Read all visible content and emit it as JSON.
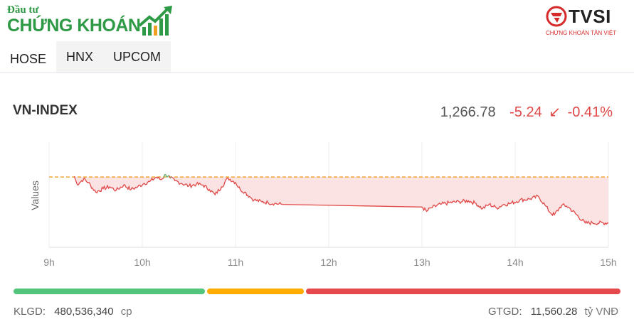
{
  "brand": {
    "logo_top": "Đầu tư",
    "logo_main": "CHỨNG KHOÁN",
    "partner_name": "TVSI",
    "partner_sub": "CHỨNG KHOÁN TÂN VIỆT"
  },
  "tabs": [
    {
      "label": "HOSE",
      "active": true
    },
    {
      "label": "HNX",
      "active": false
    },
    {
      "label": "UPCOM",
      "active": false
    }
  ],
  "index": {
    "name": "VN-INDEX",
    "value": "1,266.78",
    "change": "-5.24",
    "change_pct": "-0.41%",
    "direction": "down"
  },
  "breadth": {
    "advancing_share": 0.315,
    "unchanged_share": 0.16,
    "declining_share": 0.525
  },
  "summary": {
    "volume_label": "KLGD:",
    "volume_value": "480,536,340",
    "volume_unit": "cp",
    "value_label": "GTGD:",
    "value_value": "11,560.28",
    "value_unit": "tỷ VNĐ"
  },
  "colors": {
    "down": "#e04848",
    "up": "#52c47c",
    "reference": "#f0a020",
    "fill": "#fbe3e3"
  },
  "chart_data": {
    "type": "line",
    "ylabel": "Values",
    "x_ticks": [
      "9h",
      "10h",
      "11h",
      "12h",
      "13h",
      "14h",
      "15h"
    ],
    "x_range": [
      9,
      15
    ],
    "reference": 1272.02,
    "ylim": [
      1264,
      1276
    ],
    "series": [
      {
        "x": [
          9.27,
          9.3,
          9.33,
          9.37,
          9.42,
          9.5,
          9.58,
          9.65,
          9.72,
          9.8,
          9.88,
          9.95,
          10.02,
          10.08,
          10.15,
          10.2,
          10.25,
          10.3,
          10.35,
          10.42,
          10.5,
          10.58,
          10.65,
          10.72,
          10.78,
          10.85,
          10.92,
          11.0,
          11.05,
          11.1,
          11.15,
          11.2,
          11.28,
          11.35,
          11.42,
          11.5,
          13.0,
          13.05,
          13.1,
          13.2,
          13.3,
          13.4,
          13.5,
          13.58,
          13.65,
          13.72,
          13.8,
          13.88,
          13.95,
          14.05,
          14.15,
          14.25,
          14.32,
          14.38,
          14.42,
          14.47,
          14.5,
          14.55,
          14.58,
          14.75,
          14.83,
          15.0
        ],
        "y": [
          1272.1,
          1271.2,
          1271.4,
          1271.8,
          1271.4,
          1270.3,
          1270.7,
          1270.9,
          1270.5,
          1271.1,
          1270.6,
          1270.9,
          1271.3,
          1271.5,
          1272.0,
          1271.7,
          1272.3,
          1271.9,
          1271.6,
          1271.3,
          1271.0,
          1271.2,
          1271.1,
          1270.6,
          1270.0,
          1270.9,
          1271.9,
          1271.4,
          1270.6,
          1270.3,
          1269.8,
          1269.4,
          1269.2,
          1269.1,
          1269.0,
          1268.9,
          1268.6,
          1268.1,
          1268.5,
          1268.9,
          1269.1,
          1269.2,
          1269.3,
          1269.0,
          1268.4,
          1268.9,
          1268.5,
          1268.9,
          1269.0,
          1269.4,
          1269.5,
          1269.8,
          1268.8,
          1267.9,
          1267.7,
          1268.4,
          1268.8,
          1268.7,
          1268.5,
          1266.78,
          1266.78,
          1266.78
        ]
      }
    ]
  }
}
